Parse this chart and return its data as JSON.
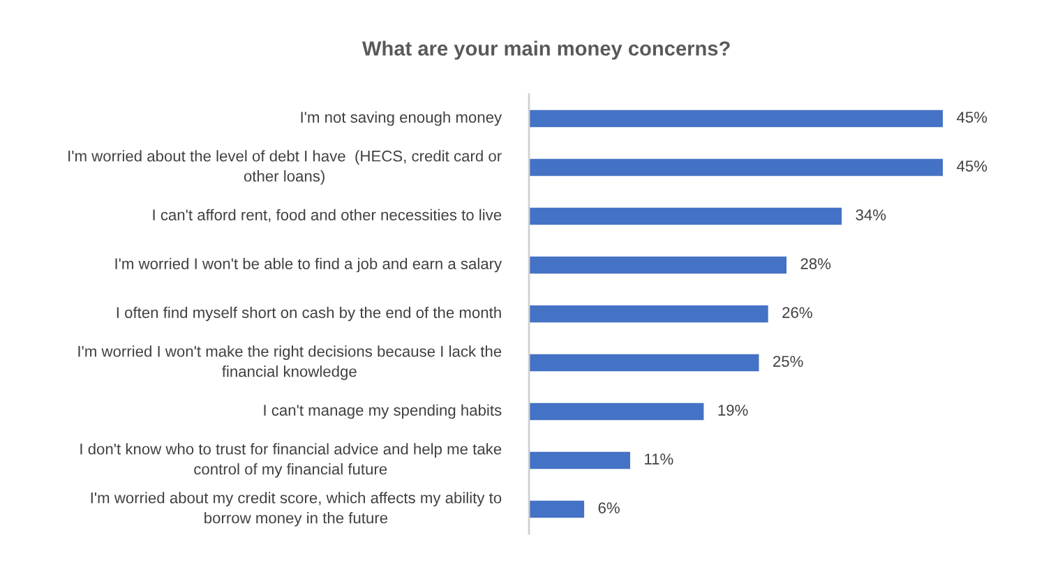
{
  "chart_data": {
    "type": "bar",
    "orientation": "horizontal",
    "title": "What are your main money concerns?",
    "categories": [
      "I'm not saving enough money",
      "I'm worried about the level of debt I have  (HECS, credit card or other loans)",
      "I can't afford rent, food and other necessities to live",
      "I'm worried I won't be able to find a job and earn a salary",
      "I often find myself short on cash by the end of the month",
      "I'm worried I won't make the right decisions because I lack the financial knowledge",
      "I can't manage my spending habits",
      "I don't know who to trust for financial advice and help me take control of my financial future",
      "I'm worried about my credit score, which affects my ability to borrow money in the future"
    ],
    "values": [
      45,
      45,
      34,
      28,
      26,
      25,
      19,
      11,
      6
    ],
    "value_labels": [
      "45%",
      "45%",
      "34%",
      "28%",
      "26%",
      "25%",
      "19%",
      "11%",
      "6%"
    ],
    "color": "#4472c4",
    "grid": false,
    "legend": false
  }
}
